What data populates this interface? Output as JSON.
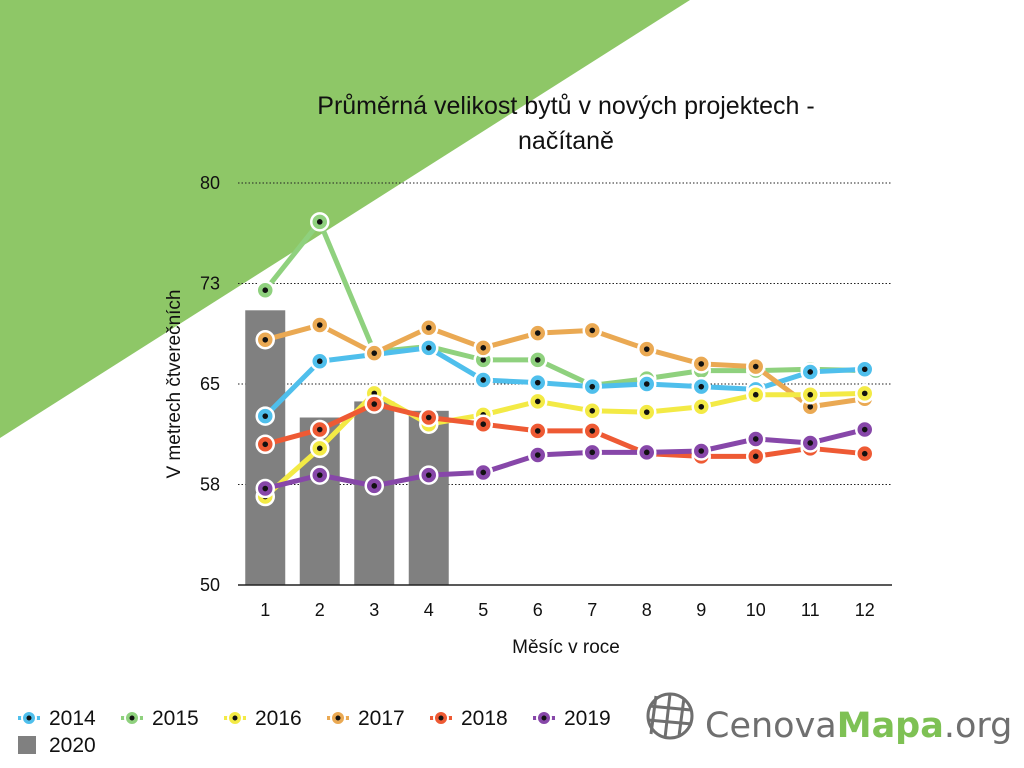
{
  "chart_data": {
    "type": "line",
    "title_lines": [
      "Průměrná velikost bytů v nových projektech -",
      "načítaně"
    ],
    "xlabel": "Měsíc v roce",
    "ylabel": "V metrech čtverečních",
    "categories": [
      "1",
      "2",
      "3",
      "4",
      "5",
      "6",
      "7",
      "8",
      "9",
      "10",
      "11",
      "12"
    ],
    "yticks": [
      "80",
      "73",
      "65",
      "58",
      "50"
    ],
    "ytick_values": [
      80,
      72.5,
      65,
      57.5,
      50
    ],
    "ylim": [
      50,
      80
    ],
    "grid": "horizontal dotted",
    "legend_position": "bottom-left",
    "series": [
      {
        "name": "2015",
        "color": "#8fd17e",
        "values": [
          72.0,
          77.1,
          67.4,
          67.8,
          66.8,
          66.8,
          64.9,
          65.4,
          66.0,
          66.0,
          66.1,
          66.0
        ]
      },
      {
        "name": "2014",
        "color": "#4fbfec",
        "values": [
          62.6,
          66.7,
          67.2,
          67.7,
          65.3,
          65.1,
          64.8,
          65.0,
          64.8,
          64.6,
          65.9,
          66.1
        ]
      },
      {
        "name": "2017",
        "color": "#eaa953",
        "values": [
          68.3,
          69.4,
          67.3,
          69.2,
          67.7,
          68.8,
          69.0,
          67.6,
          66.5,
          66.3,
          63.3,
          63.9
        ]
      },
      {
        "name": "2016",
        "color": "#f3ea45",
        "values": [
          56.6,
          60.2,
          64.3,
          62.0,
          62.7,
          63.7,
          63.0,
          62.9,
          63.3,
          64.2,
          64.2,
          64.3
        ]
      },
      {
        "name": "2018",
        "color": "#ee5a34",
        "values": [
          60.5,
          61.6,
          63.5,
          62.5,
          62.0,
          61.5,
          61.5,
          59.8,
          59.6,
          59.6,
          60.2,
          59.8
        ]
      },
      {
        "name": "2019",
        "color": "#8747a9",
        "values": [
          57.2,
          58.2,
          57.4,
          58.2,
          58.4,
          59.7,
          59.9,
          59.9,
          60.0,
          60.9,
          60.6,
          61.6
        ]
      }
    ],
    "bar_series": {
      "name": "2020",
      "color": "#808080",
      "values": [
        70.5,
        62.5,
        63.7,
        63.0
      ]
    },
    "legend_order": [
      "2014",
      "2015",
      "2016",
      "2017",
      "2018",
      "2019",
      "2020"
    ]
  },
  "logo": {
    "part1": "Cenova",
    "part2": "Mapa",
    "part3": ".org"
  },
  "colors": {
    "corner_triangle": "#8ec767",
    "logo_gray": "#6f6f6f",
    "logo_green": "#7ec154",
    "marker_dot": "#111111"
  }
}
